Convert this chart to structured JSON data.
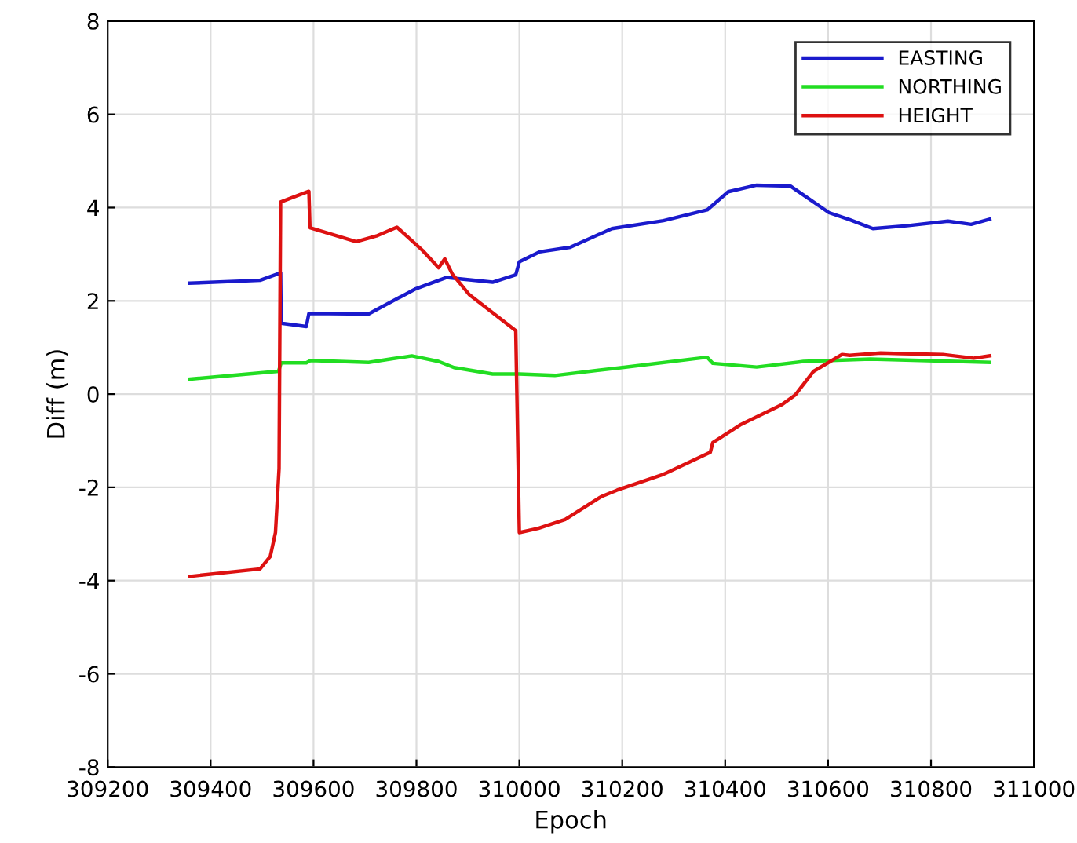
{
  "chart_data": {
    "type": "line",
    "xlabel": "Epoch",
    "ylabel": "Diff (m)",
    "xlim": [
      309200,
      311000
    ],
    "xticks": [
      309200,
      309400,
      309600,
      309800,
      310000,
      310200,
      310400,
      310600,
      310800,
      311000
    ],
    "ylim": [
      -8,
      8
    ],
    "yticks": [
      -8,
      -6,
      -4,
      -2,
      0,
      2,
      4,
      6,
      8
    ],
    "grid": true,
    "legend": "top right",
    "marker": "none",
    "line_style": "solid",
    "series": [
      {
        "name": "EASTING",
        "color": "#1a1acc",
        "x": [
          309360,
          309496,
          309536,
          309537,
          309586,
          309591,
          309707,
          309797,
          309858,
          309948,
          309993,
          310000,
          310039,
          310099,
          310180,
          310280,
          310365,
          310406,
          310461,
          310527,
          310602,
          310642,
          310687,
          310753,
          310833,
          310878,
          310914
        ],
        "values": [
          2.38,
          2.44,
          2.6,
          1.52,
          1.45,
          1.73,
          1.72,
          2.25,
          2.5,
          2.4,
          2.56,
          2.84,
          3.05,
          3.15,
          3.55,
          3.72,
          3.95,
          4.34,
          4.48,
          4.46,
          3.89,
          3.74,
          3.55,
          3.61,
          3.71,
          3.64,
          3.75
        ]
      },
      {
        "name": "NORTHING",
        "color": "#22dd22",
        "x": [
          309360,
          309532,
          309537,
          309586,
          309594,
          309707,
          309791,
          309843,
          309873,
          309948,
          310000,
          310069,
          310200,
          310365,
          310376,
          310461,
          310552,
          310682,
          310914
        ],
        "values": [
          0.32,
          0.49,
          0.67,
          0.67,
          0.72,
          0.68,
          0.82,
          0.7,
          0.57,
          0.43,
          0.43,
          0.4,
          0.57,
          0.79,
          0.66,
          0.58,
          0.7,
          0.75,
          0.68
        ]
      },
      {
        "name": "HEIGHT",
        "color": "#dd1111",
        "x": [
          309360,
          309496,
          309516,
          309526,
          309533,
          309536,
          309591,
          309593,
          309683,
          309722,
          309762,
          309812,
          309843,
          309855,
          309870,
          309903,
          309993,
          310000,
          310037,
          310089,
          310159,
          310190,
          310280,
          310290,
          310371,
          310376,
          310431,
          310511,
          310536,
          310572,
          310627,
          310642,
          310702,
          310742,
          310823,
          310883,
          310914
        ],
        "values": [
          -3.91,
          -3.75,
          -3.48,
          -2.97,
          -1.6,
          4.12,
          4.35,
          3.57,
          3.27,
          3.39,
          3.58,
          3.08,
          2.71,
          2.9,
          2.57,
          2.13,
          1.36,
          -2.97,
          -2.88,
          -2.69,
          -2.2,
          -2.06,
          -1.72,
          -1.67,
          -1.25,
          -1.04,
          -0.65,
          -0.22,
          -0.02,
          0.49,
          0.85,
          0.83,
          0.88,
          0.87,
          0.85,
          0.77,
          0.82
        ]
      }
    ]
  }
}
